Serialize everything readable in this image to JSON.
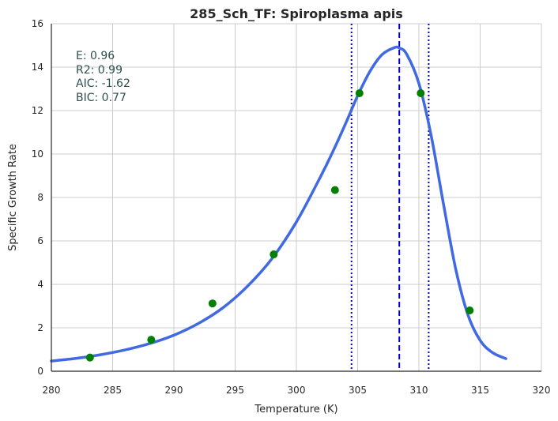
{
  "chart_data": {
    "type": "scatter",
    "title": "285_Sch_TF: Spiroplasma apis",
    "xlabel": "Temperature (K)",
    "ylabel": "Specific Growth Rate",
    "xlim": [
      280,
      320
    ],
    "ylim": [
      0,
      16
    ],
    "xticks": [
      "280",
      "285",
      "290",
      "295",
      "300",
      "305",
      "310",
      "315",
      "320"
    ],
    "yticks": [
      "0",
      "2",
      "4",
      "6",
      "8",
      "10",
      "12",
      "14",
      "16"
    ],
    "grid": true,
    "points": {
      "color": "#008000",
      "x": [
        283.15,
        288.15,
        293.15,
        298.15,
        303.15,
        305.15,
        310.15,
        314.15
      ],
      "y": [
        0.63,
        1.45,
        3.12,
        5.38,
        8.34,
        12.8,
        12.8,
        2.8
      ]
    },
    "fit_curve": {
      "color": "#4169e1",
      "x": [
        280,
        282,
        284,
        286,
        288,
        290,
        292,
        294,
        296,
        298,
        300,
        302,
        303,
        304,
        305,
        306,
        307,
        308,
        308.4,
        309,
        310,
        311,
        312,
        313,
        314,
        315,
        316,
        317.1
      ],
      "y": [
        0.47,
        0.59,
        0.76,
        0.98,
        1.27,
        1.66,
        2.2,
        2.92,
        3.91,
        5.18,
        6.87,
        8.99,
        10.14,
        11.38,
        12.68,
        13.8,
        14.58,
        14.9,
        14.88,
        14.6,
        13.25,
        10.85,
        7.72,
        4.72,
        2.6,
        1.42,
        0.86,
        0.58
      ]
    },
    "peak_line": {
      "x": 308.4,
      "color": "#0000cd",
      "style": "dashed"
    },
    "bound_lines": {
      "x": [
        304.5,
        310.8
      ],
      "color": "#0000cd",
      "style": "dotted"
    },
    "annotations": [
      "E:  0.96",
      "R2:  0.99",
      "AIC: -1.62",
      "BIC: 0.77"
    ]
  }
}
